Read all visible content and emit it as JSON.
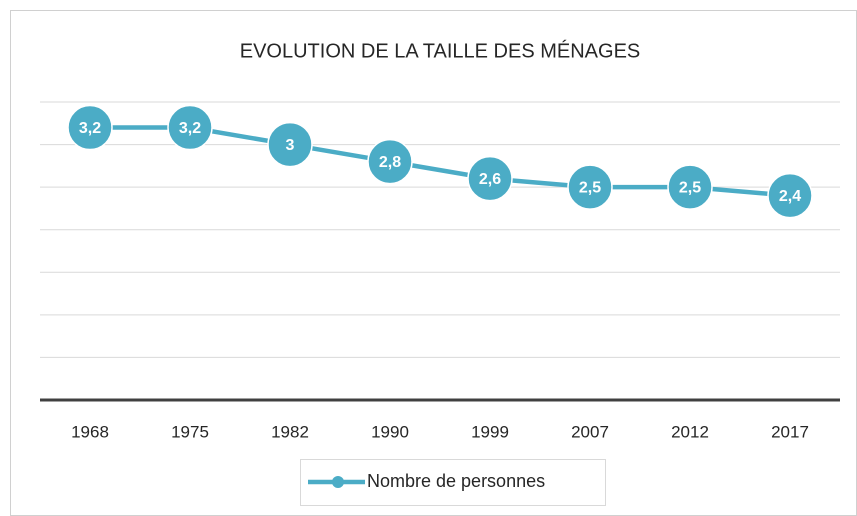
{
  "chart_data": {
    "type": "line",
    "title": "EVOLUTION DE LA TAILLE DES MÉNAGES",
    "categories": [
      "1968",
      "1975",
      "1982",
      "1990",
      "1999",
      "2007",
      "2012",
      "2017"
    ],
    "series": [
      {
        "name": "Nombre de personnes",
        "color": "#4bacc6",
        "values": [
          3.2,
          3.2,
          3,
          2.8,
          2.6,
          2.5,
          2.5,
          2.4
        ],
        "value_labels": [
          "3,2",
          "3,2",
          "3",
          "2,8",
          "2,6",
          "2,5",
          "2,5",
          "2,4"
        ]
      }
    ],
    "ylim": [
      0,
      3.5
    ],
    "yticks": [
      0,
      0.5,
      1,
      1.5,
      2,
      2.5,
      3,
      3.5
    ],
    "grid": true,
    "legend": "bottom"
  }
}
